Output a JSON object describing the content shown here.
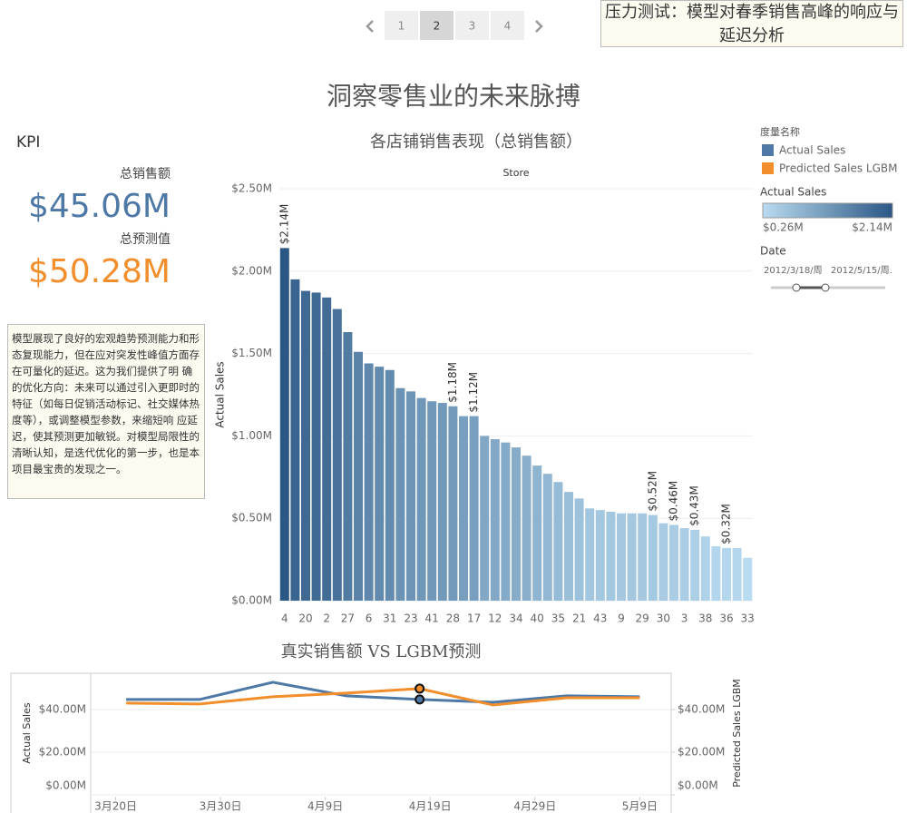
{
  "pagination": {
    "pages": [
      1,
      2,
      3,
      4
    ],
    "active_page": 2
  },
  "caption": "压力测试：模型对春季销售高峰的响应与延迟分析",
  "title": "洞察零售业的未来脉搏",
  "kpi": {
    "heading": "KPI",
    "items": [
      {
        "label": "总销售额",
        "value": "$45.06M",
        "color": "#4e79a7"
      },
      {
        "label": "总预测值",
        "value": "$50.28M",
        "color": "#f28e2b"
      }
    ]
  },
  "notes": "模型展现了良好的宏观趋势预测能力和形态复现能力，但在应对突发性峰值方面存在可量化的延迟。这为我们提供了明 确的优化方向：未来可以通过引入更即时的特征（如每日促销活动标记、社交媒体热度等），或调整模型参数，来缩短响 应延迟，使其预测更加敏锐。对模型局限性的清晰认知，是迭代优化的第一步，也是本项目最宝贵的发现之一。",
  "legend": {
    "title": "度量名称",
    "items": [
      {
        "name": "Actual Sales",
        "color": "#4e79a7"
      },
      {
        "name": "Predicted Sales LGBM",
        "color": "#f28e2b"
      }
    ],
    "color_scale": {
      "title": "Actual Sales",
      "min": {
        "value": 0.26,
        "label": "$0.26M"
      },
      "max": {
        "value": 2.14,
        "label": "$2.14M"
      },
      "colors": [
        "#b9dbf0",
        "#2b5784"
      ]
    },
    "filter": {
      "title": "Date",
      "from": "2012/3/18/周",
      "to": "2012/5/15/周."
    }
  },
  "chart_data": [
    {
      "type": "bar",
      "title": "各店铺销售表现（总销售额）",
      "header": "Store",
      "y_label": "Actual Sales",
      "categories": [
        4,
        null,
        20,
        null,
        2,
        null,
        27,
        null,
        6,
        null,
        31,
        null,
        23,
        null,
        41,
        null,
        28,
        null,
        17,
        null,
        12,
        null,
        34,
        null,
        40,
        null,
        35,
        null,
        21,
        null,
        43,
        null,
        9,
        null,
        29,
        null,
        30,
        null,
        3,
        null,
        38,
        null,
        36,
        null,
        33
      ],
      "values": [
        2.14,
        1.95,
        1.88,
        1.87,
        1.84,
        1.77,
        1.63,
        1.51,
        1.44,
        1.42,
        1.4,
        1.29,
        1.27,
        1.23,
        1.21,
        1.2,
        1.18,
        1.12,
        1.12,
        1.0,
        0.98,
        0.96,
        0.93,
        0.88,
        0.82,
        0.77,
        0.72,
        0.66,
        0.62,
        0.56,
        0.55,
        0.54,
        0.53,
        0.53,
        0.53,
        0.52,
        0.47,
        0.46,
        0.44,
        0.43,
        0.39,
        0.33,
        0.32,
        0.32,
        0.26
      ],
      "value_labels": [
        "$2.14M",
        null,
        null,
        null,
        null,
        null,
        null,
        null,
        null,
        null,
        null,
        null,
        null,
        null,
        null,
        null,
        "$1.18M",
        null,
        "$1.12M",
        null,
        null,
        null,
        null,
        null,
        null,
        null,
        null,
        null,
        null,
        null,
        null,
        null,
        null,
        null,
        null,
        "$0.52M",
        null,
        "$0.46M",
        null,
        "$0.43M",
        null,
        null,
        "$0.32M",
        null,
        null
      ],
      "ylim": [
        0,
        2.5
      ],
      "yticks": [
        {
          "value": 0,
          "label": "$0.00M"
        },
        {
          "value": 0.5,
          "label": "$0.50M"
        },
        {
          "value": 1,
          "label": "$1.00M"
        },
        {
          "value": 1.5,
          "label": "$1.50M"
        },
        {
          "value": 2,
          "label": "$2.00M"
        },
        {
          "value": 2.5,
          "label": "$2.50M"
        }
      ],
      "grid": true
    },
    {
      "type": "line",
      "title": "真实销售额 VS LGBM预测",
      "y_label": "Actual Sales",
      "y2_label": "Predicted Sales LGBM",
      "x": [
        "03-21",
        "03-28",
        "04-04",
        "04-11",
        "04-18",
        "04-25",
        "05-02",
        "05-09"
      ],
      "series": [
        {
          "name": "Actual Sales",
          "color": "#4e79a7",
          "values": [
            44.7,
            44.7,
            52.8,
            46.4,
            44.7,
            43.4,
            46.4,
            46.0
          ]
        },
        {
          "name": "Predicted Sales LGBM",
          "color": "#f28e2b",
          "values": [
            43.0,
            42.6,
            46.0,
            47.7,
            49.8,
            42.1,
            45.5,
            45.5
          ],
          "axis": "y2"
        }
      ],
      "highlight_index": 4,
      "xlim": [
        "03-10",
        "05-12"
      ],
      "xticks": [
        {
          "value": "03-20",
          "label": "3月20日"
        },
        {
          "value": "03-30",
          "label": "3月30日"
        },
        {
          "value": "04-09",
          "label": "4月9日"
        },
        {
          "value": "04-19",
          "label": "4月19日"
        },
        {
          "value": "04-29",
          "label": "4月29日"
        },
        {
          "value": "05-09",
          "label": "5月9日"
        }
      ],
      "ylim": [
        0,
        57
      ],
      "yticks": [
        {
          "value": 0,
          "label": "$0.00M"
        },
        {
          "value": 20,
          "label": "$20.00M"
        },
        {
          "value": 40,
          "label": "$40.00M"
        }
      ],
      "y2lim": [
        0,
        57
      ],
      "y2ticks": [
        {
          "value": 0,
          "label": "$0.00M"
        },
        {
          "value": 20,
          "label": "$20.00M"
        },
        {
          "value": 40,
          "label": "$40.00M"
        }
      ],
      "grid": true
    }
  ]
}
